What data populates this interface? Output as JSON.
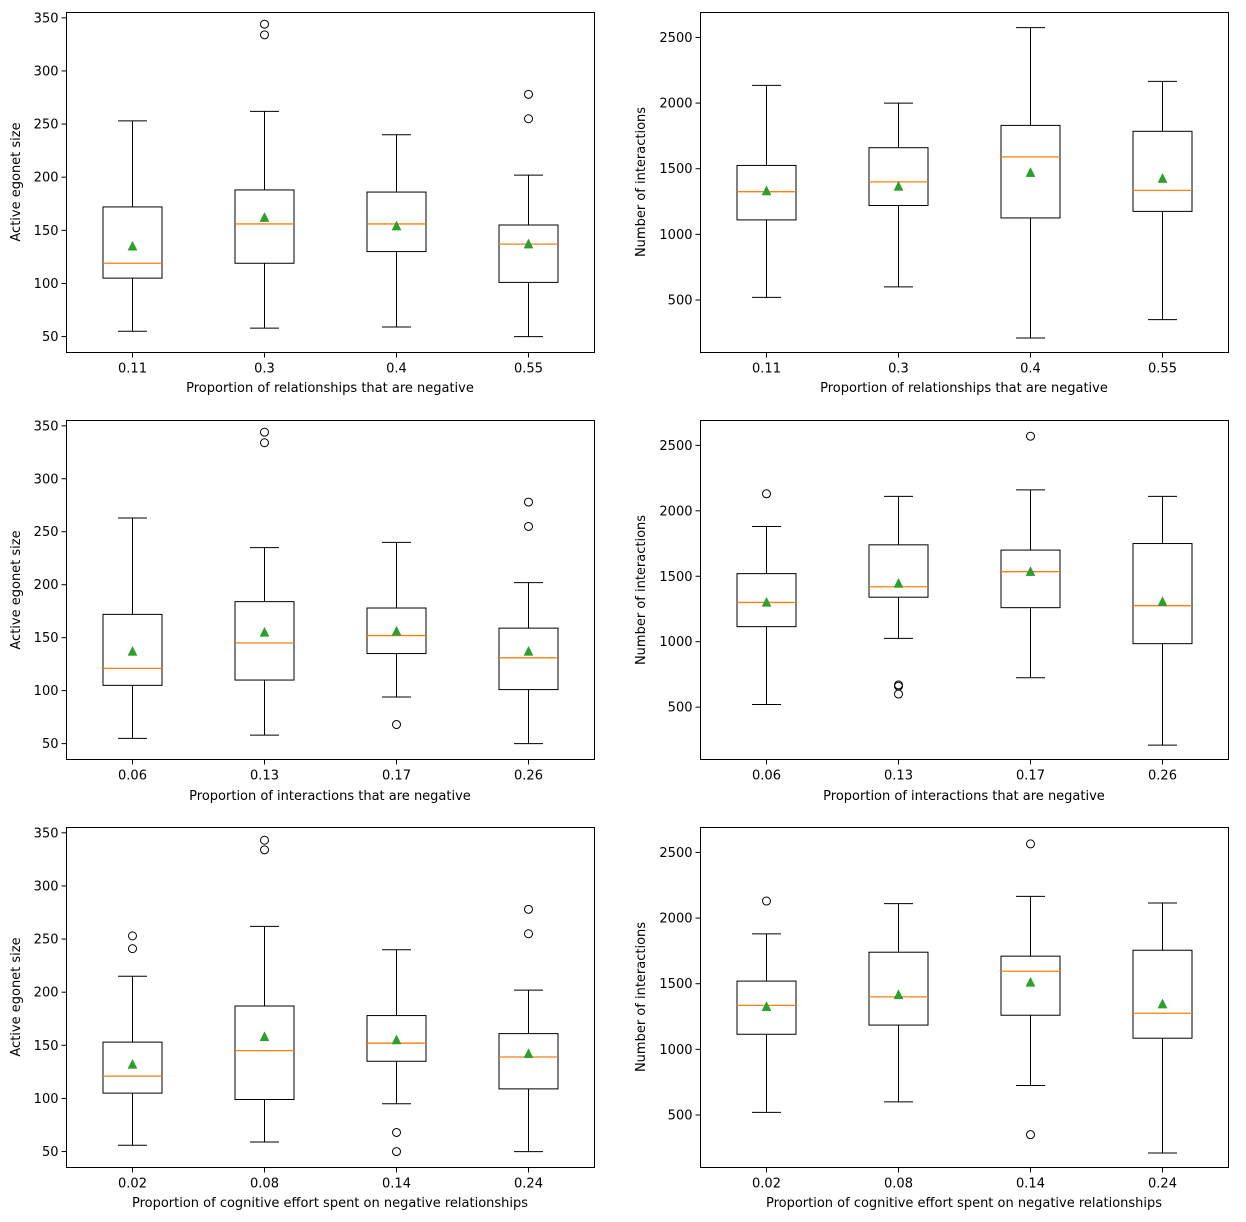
{
  "colors": {
    "box": "#000000",
    "median": "#ff7f0e",
    "mean": "#2ca02c",
    "flier": "#000000"
  },
  "chart_data": [
    {
      "type": "box",
      "xlabel": "Proportion of relationships that are negative",
      "ylabel": "Active egonet size",
      "ylim": [
        35,
        355
      ],
      "yticks": [
        50,
        100,
        150,
        200,
        250,
        300,
        350
      ],
      "categories": [
        "0.11",
        "0.3",
        "0.4",
        "0.55"
      ],
      "boxes": [
        {
          "whislo": 55,
          "q1": 105,
          "med": 119,
          "q3": 172,
          "whishi": 253,
          "mean": 135,
          "fliers": []
        },
        {
          "whislo": 58,
          "q1": 119,
          "med": 156,
          "q3": 188,
          "whishi": 262,
          "mean": 162,
          "fliers": [
            334,
            344
          ]
        },
        {
          "whislo": 59,
          "q1": 130,
          "med": 156,
          "q3": 186,
          "whishi": 240,
          "mean": 154,
          "fliers": []
        },
        {
          "whislo": 50,
          "q1": 101,
          "med": 137,
          "q3": 155,
          "whishi": 202,
          "mean": 137,
          "fliers": [
            255,
            278
          ]
        }
      ]
    },
    {
      "type": "box",
      "xlabel": "Proportion of relationships that are negative",
      "ylabel": "Number of interactions",
      "ylim": [
        100,
        2690
      ],
      "yticks": [
        500,
        1000,
        1500,
        2000,
        2500
      ],
      "categories": [
        "0.11",
        "0.3",
        "0.4",
        "0.55"
      ],
      "boxes": [
        {
          "whislo": 520,
          "q1": 1110,
          "med": 1325,
          "q3": 1525,
          "whishi": 2135,
          "mean": 1330,
          "fliers": []
        },
        {
          "whislo": 600,
          "q1": 1220,
          "med": 1400,
          "q3": 1660,
          "whishi": 2000,
          "mean": 1365,
          "fliers": []
        },
        {
          "whislo": 210,
          "q1": 1125,
          "med": 1590,
          "q3": 1830,
          "whishi": 2575,
          "mean": 1470,
          "fliers": []
        },
        {
          "whislo": 350,
          "q1": 1175,
          "med": 1335,
          "q3": 1785,
          "whishi": 2165,
          "mean": 1425,
          "fliers": []
        }
      ]
    },
    {
      "type": "box",
      "xlabel": "Proportion of interactions that are negative",
      "ylabel": "Active egonet size",
      "ylim": [
        35,
        355
      ],
      "yticks": [
        50,
        100,
        150,
        200,
        250,
        300,
        350
      ],
      "categories": [
        "0.06",
        "0.13",
        "0.17",
        "0.26"
      ],
      "boxes": [
        {
          "whislo": 55,
          "q1": 105,
          "med": 121,
          "q3": 172,
          "whishi": 263,
          "mean": 137,
          "fliers": []
        },
        {
          "whislo": 58,
          "q1": 110,
          "med": 145,
          "q3": 184,
          "whishi": 235,
          "mean": 155,
          "fliers": [
            334,
            344
          ]
        },
        {
          "whislo": 94,
          "q1": 135,
          "med": 152,
          "q3": 178,
          "whishi": 240,
          "mean": 156,
          "fliers": [
            68
          ]
        },
        {
          "whislo": 50,
          "q1": 101,
          "med": 131,
          "q3": 159,
          "whishi": 202,
          "mean": 137,
          "fliers": [
            255,
            278
          ]
        }
      ]
    },
    {
      "type": "box",
      "xlabel": "Proportion of interactions that are negative",
      "ylabel": "Number of interactions",
      "ylim": [
        100,
        2690
      ],
      "yticks": [
        500,
        1000,
        1500,
        2000,
        2500
      ],
      "categories": [
        "0.06",
        "0.13",
        "0.17",
        "0.26"
      ],
      "boxes": [
        {
          "whislo": 520,
          "q1": 1115,
          "med": 1300,
          "q3": 1520,
          "whishi": 1880,
          "mean": 1300,
          "fliers": [
            2130
          ]
        },
        {
          "whislo": 1025,
          "q1": 1340,
          "med": 1420,
          "q3": 1740,
          "whishi": 2110,
          "mean": 1445,
          "fliers": [
            600,
            660,
            670
          ]
        },
        {
          "whislo": 725,
          "q1": 1260,
          "med": 1535,
          "q3": 1700,
          "whishi": 2160,
          "mean": 1535,
          "fliers": [
            2570
          ]
        },
        {
          "whislo": 210,
          "q1": 985,
          "med": 1275,
          "q3": 1750,
          "whishi": 2110,
          "mean": 1305,
          "fliers": []
        }
      ]
    },
    {
      "type": "box",
      "xlabel": "Proportion of cognitive effort spent on negative relationships",
      "ylabel": "Active egonet size",
      "ylim": [
        35,
        355
      ],
      "yticks": [
        50,
        100,
        150,
        200,
        250,
        300,
        350
      ],
      "categories": [
        "0.02",
        "0.08",
        "0.14",
        "0.24"
      ],
      "boxes": [
        {
          "whislo": 56,
          "q1": 105,
          "med": 121,
          "q3": 153,
          "whishi": 215,
          "mean": 132,
          "fliers": [
            241,
            253
          ]
        },
        {
          "whislo": 59,
          "q1": 99,
          "med": 145,
          "q3": 187,
          "whishi": 262,
          "mean": 158,
          "fliers": [
            334,
            343
          ]
        },
        {
          "whislo": 95,
          "q1": 135,
          "med": 152,
          "q3": 178,
          "whishi": 240,
          "mean": 155,
          "fliers": [
            50,
            68
          ]
        },
        {
          "whislo": 50,
          "q1": 109,
          "med": 139,
          "q3": 161,
          "whishi": 202,
          "mean": 142,
          "fliers": [
            255,
            278
          ]
        }
      ]
    },
    {
      "type": "box",
      "xlabel": "Proportion of cognitive effort spent on negative relationships",
      "ylabel": "Number of interactions",
      "ylim": [
        100,
        2690
      ],
      "yticks": [
        500,
        1000,
        1500,
        2000,
        2500
      ],
      "categories": [
        "0.02",
        "0.08",
        "0.14",
        "0.24"
      ],
      "boxes": [
        {
          "whislo": 520,
          "q1": 1115,
          "med": 1335,
          "q3": 1520,
          "whishi": 1880,
          "mean": 1325,
          "fliers": [
            2130
          ]
        },
        {
          "whislo": 600,
          "q1": 1185,
          "med": 1400,
          "q3": 1740,
          "whishi": 2110,
          "mean": 1415,
          "fliers": []
        },
        {
          "whislo": 725,
          "q1": 1260,
          "med": 1595,
          "q3": 1710,
          "whishi": 2165,
          "mean": 1510,
          "fliers": [
            350,
            2565
          ]
        },
        {
          "whislo": 210,
          "q1": 1085,
          "med": 1275,
          "q3": 1755,
          "whishi": 2115,
          "mean": 1345,
          "fliers": []
        }
      ]
    }
  ]
}
